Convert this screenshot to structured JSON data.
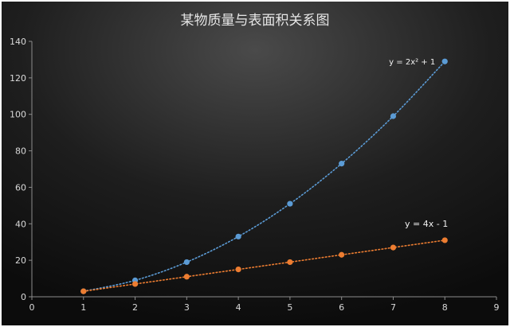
{
  "chart_data": {
    "type": "scatter",
    "title": "某物质量与表面积关系图",
    "xlabel": "",
    "ylabel": "",
    "xlim": [
      0,
      9
    ],
    "ylim": [
      0,
      140
    ],
    "x_ticks": [
      0,
      1,
      2,
      3,
      4,
      5,
      6,
      7,
      8,
      9
    ],
    "y_ticks": [
      0,
      20,
      40,
      60,
      80,
      100,
      120,
      140
    ],
    "grid": false,
    "legend": "none",
    "series": [
      {
        "color": "#5b9bd5",
        "trendline": "dotted",
        "annotation": "y = 2x² + 1",
        "x": [
          1,
          2,
          3,
          4,
          5,
          6,
          7,
          8
        ],
        "y": [
          3,
          9,
          19,
          33,
          51,
          73,
          99,
          129
        ]
      },
      {
        "color": "#ed7d31",
        "trendline": "dotted",
        "annotation": "y = 4x - 1",
        "x": [
          1,
          2,
          3,
          4,
          5,
          6,
          7,
          8
        ],
        "y": [
          3,
          7,
          11,
          15,
          19,
          23,
          27,
          31
        ]
      }
    ]
  }
}
